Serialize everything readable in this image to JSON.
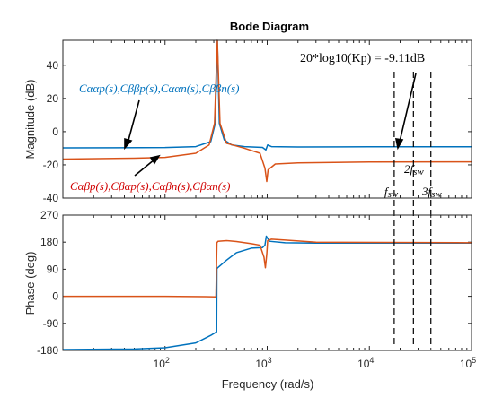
{
  "chart_data": {
    "type": "line",
    "title": "Bode Diagram",
    "xlabel": "Frequency  (rad/s)",
    "xscale": "log",
    "xlim": [
      10,
      100000
    ],
    "x_ticks": [
      {
        "v": 100,
        "label": "10",
        "exp": "2"
      },
      {
        "v": 1000,
        "label": "10",
        "exp": "3"
      },
      {
        "v": 10000,
        "label": "10",
        "exp": "4"
      },
      {
        "v": 100000,
        "label": "10",
        "exp": "5"
      }
    ],
    "colors": {
      "blue": "#0072BD",
      "orange": "#D95319",
      "red": "#D00000",
      "axis": "#262626"
    },
    "magnitude": {
      "ylabel": "Magnitude (dB)",
      "ylim": [
        -40,
        55
      ],
      "yticks": [
        -40,
        -20,
        0,
        20,
        40
      ],
      "series": [
        {
          "color": "blue",
          "points": [
            [
              10,
              -9.8
            ],
            [
              100,
              -9.6
            ],
            [
              200,
              -9
            ],
            [
              280,
              -6
            ],
            [
              310,
              5
            ],
            [
              325,
              55
            ],
            [
              340,
              5
            ],
            [
              380,
              -5
            ],
            [
              450,
              -8
            ],
            [
              600,
              -9
            ],
            [
              900,
              -9.5
            ],
            [
              970,
              -11
            ],
            [
              1010,
              -8
            ],
            [
              1100,
              -9
            ],
            [
              2000,
              -9.2
            ],
            [
              10000,
              -9.11
            ],
            [
              100000,
              -9.11
            ]
          ]
        },
        {
          "color": "orange",
          "points": [
            [
              10,
              -16.5
            ],
            [
              50,
              -16
            ],
            [
              100,
              -15.5
            ],
            [
              200,
              -13
            ],
            [
              270,
              -8
            ],
            [
              305,
              5
            ],
            [
              325,
              55
            ],
            [
              345,
              5
            ],
            [
              400,
              -7
            ],
            [
              600,
              -10
            ],
            [
              850,
              -13
            ],
            [
              950,
              -22
            ],
            [
              990,
              -30
            ],
            [
              1020,
              -23
            ],
            [
              1200,
              -19.5
            ],
            [
              2000,
              -18.8
            ],
            [
              10000,
              -18.3
            ],
            [
              100000,
              -18.2
            ]
          ]
        }
      ],
      "annotations": {
        "blue_label": "Cααp(s),Cββp(s),Cααn(s),Cββn(s)",
        "red_label": "Cαβp(s),Cβαp(s),Cαβn(s),Cβαn(s)",
        "gain_label": "20*log10(Kp) = -9.11dB",
        "f1": "f",
        "f1_sub": "sw",
        "f2": "2f",
        "f2_sub": "sw",
        "f3": "3f",
        "f3_sub": "sw"
      }
    },
    "phase": {
      "ylabel": "Phase (deg)",
      "ylim": [
        -180,
        270
      ],
      "yticks": [
        -180,
        -90,
        0,
        90,
        180,
        270
      ],
      "series": [
        {
          "color": "blue",
          "points": [
            [
              10,
              -177
            ],
            [
              50,
              -175
            ],
            [
              100,
              -171
            ],
            [
              200,
              -155
            ],
            [
              280,
              -130
            ],
            [
              320,
              -118
            ],
            [
              322,
              92
            ],
            [
              330,
              96
            ],
            [
              400,
              120
            ],
            [
              500,
              145
            ],
            [
              700,
              160
            ],
            [
              900,
              162
            ],
            [
              950,
              170
            ],
            [
              980,
              200
            ],
            [
              1000,
              195
            ],
            [
              1050,
              183
            ],
            [
              1500,
              178
            ],
            [
              3000,
              177
            ],
            [
              100000,
              177
            ]
          ]
        },
        {
          "color": "orange",
          "points": [
            [
              10,
              0
            ],
            [
              100,
              0
            ],
            [
              250,
              -1
            ],
            [
              315,
              -2
            ],
            [
              322,
              178
            ],
            [
              330,
              183
            ],
            [
              400,
              185
            ],
            [
              500,
              182
            ],
            [
              700,
              175
            ],
            [
              850,
              170
            ],
            [
              930,
              130
            ],
            [
              960,
              95
            ],
            [
              990,
              140
            ],
            [
              1010,
              185
            ],
            [
              1100,
              190
            ],
            [
              1500,
              187
            ],
            [
              3000,
              180
            ],
            [
              100000,
              178
            ]
          ]
        }
      ]
    },
    "markers": [
      {
        "x": 17500
      },
      {
        "x": 27000
      },
      {
        "x": 40000
      }
    ]
  }
}
